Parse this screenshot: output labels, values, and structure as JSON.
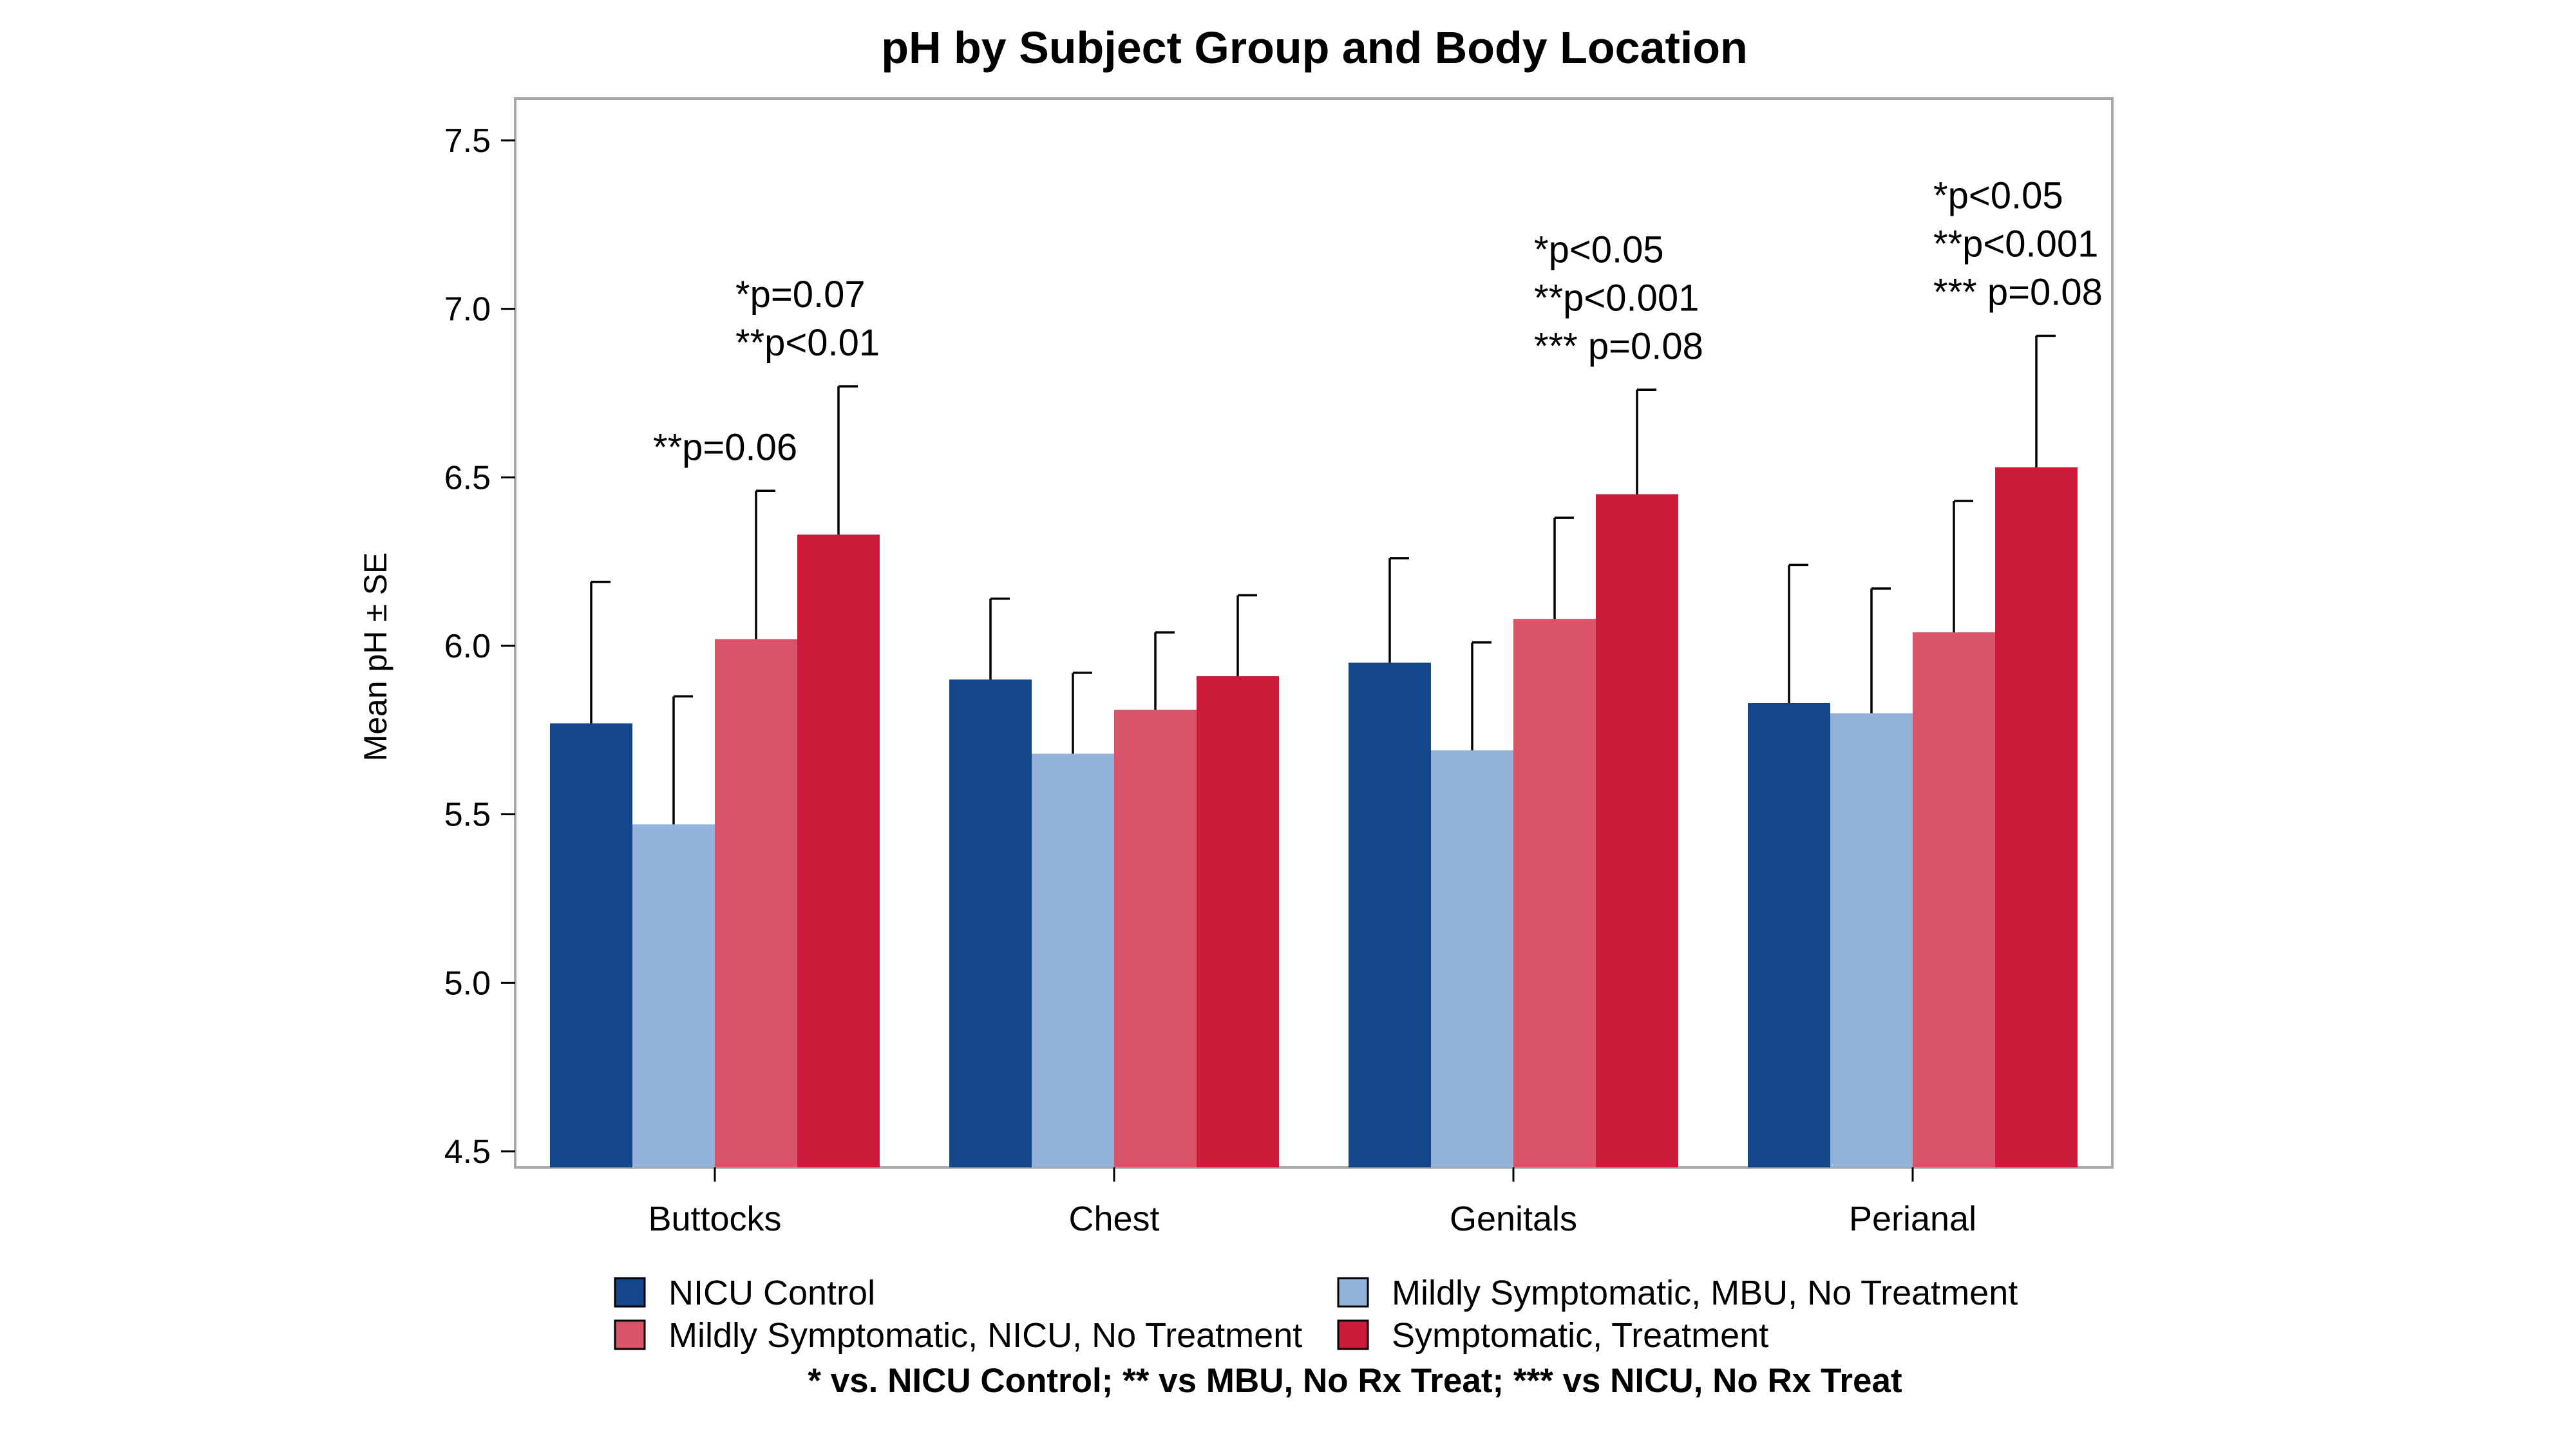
{
  "chart_data": {
    "type": "bar",
    "title": "pH by Subject Group and Body Location",
    "xlabel": "",
    "ylabel": "Mean pH ± SE",
    "ylim": [
      4.5,
      7.5
    ],
    "yticks": [
      "4.5",
      "5.0",
      "5.5",
      "6.0",
      "6.5",
      "7.0",
      "7.5"
    ],
    "grid": false,
    "legend_position": "bottom",
    "categories": [
      "Buttocks",
      "Chest",
      "Genitals",
      "Perianal"
    ],
    "series": [
      {
        "name": "NICU Control",
        "color": "#13478a",
        "values": [
          5.77,
          5.9,
          5.95,
          5.83
        ],
        "errors": [
          0.42,
          0.24,
          0.31,
          0.41
        ]
      },
      {
        "name": "Mildly Symptomatic, MBU, No Treatment",
        "color": "#93b2da",
        "values": [
          5.47,
          5.68,
          5.69,
          5.8
        ],
        "errors": [
          0.38,
          0.24,
          0.32,
          0.37
        ]
      },
      {
        "name": "Mildly Symptomatic, NICU, No Treatment",
        "color": "#d85468",
        "values": [
          6.02,
          5.81,
          6.08,
          6.04
        ],
        "errors": [
          0.44,
          0.23,
          0.3,
          0.39
        ]
      },
      {
        "name": "Symptomatic, Treatment",
        "color": "#cc1a3b",
        "values": [
          6.33,
          5.91,
          6.45,
          6.53
        ],
        "errors": [
          0.44,
          0.24,
          0.31,
          0.39
        ]
      }
    ],
    "annotations": [
      {
        "category": "Buttocks",
        "series": 2,
        "lines": [
          "**p=0.06"
        ]
      },
      {
        "category": "Buttocks",
        "series": 3,
        "lines": [
          "*p=0.07",
          "**p<0.01"
        ]
      },
      {
        "category": "Genitals",
        "series": 3,
        "lines": [
          "*p<0.05",
          "**p<0.001",
          "*** p=0.08"
        ]
      },
      {
        "category": "Perianal",
        "series": 3,
        "lines": [
          "*p<0.05",
          "**p<0.001",
          "*** p=0.08"
        ]
      }
    ],
    "footnote": "* vs. NICU Control; ** vs MBU, No Rx Treat; *** vs NICU, No Rx Treat"
  }
}
